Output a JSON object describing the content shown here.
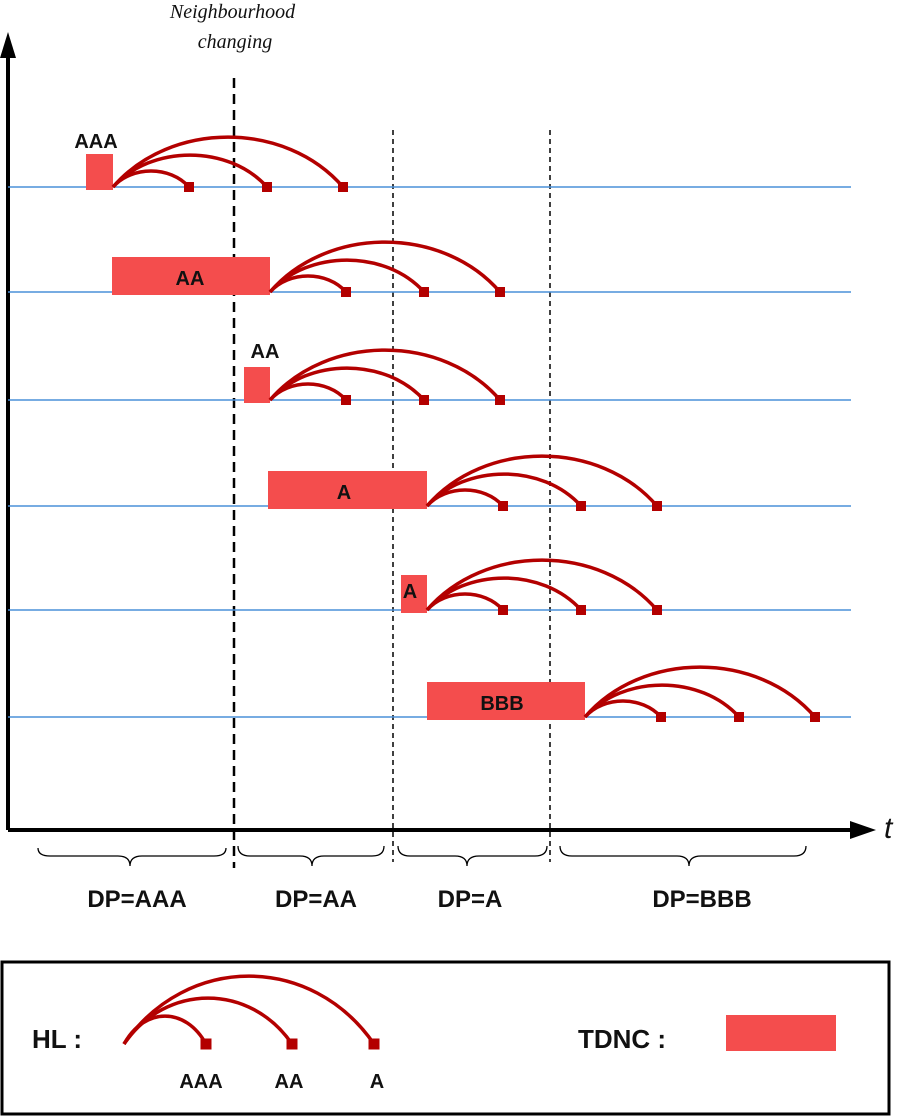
{
  "annotation": "Neighbourhood\nchanging",
  "axis": {
    "time_label": "t"
  },
  "colors": {
    "arc": "#b30000",
    "tdnc": "#f44d4d",
    "timeline": "#4a90d9",
    "axis": "#000000"
  },
  "rows": [
    {
      "label": "AAA",
      "label_position": "above"
    },
    {
      "label": "AA",
      "label_position": "inside"
    },
    {
      "label": "AA",
      "label_position": "above"
    },
    {
      "label": "A",
      "label_position": "inside"
    },
    {
      "label": "A",
      "label_position": "inside"
    },
    {
      "label": "BBB",
      "label_position": "inside"
    }
  ],
  "periods": [
    "DP=AAA",
    "DP=AA",
    "DP=A",
    "DP=BBB"
  ],
  "legend": {
    "hl_label": "HL :",
    "hl_targets": [
      "AAA",
      "AA",
      "A"
    ],
    "tdnc_label": "TDNC :"
  }
}
